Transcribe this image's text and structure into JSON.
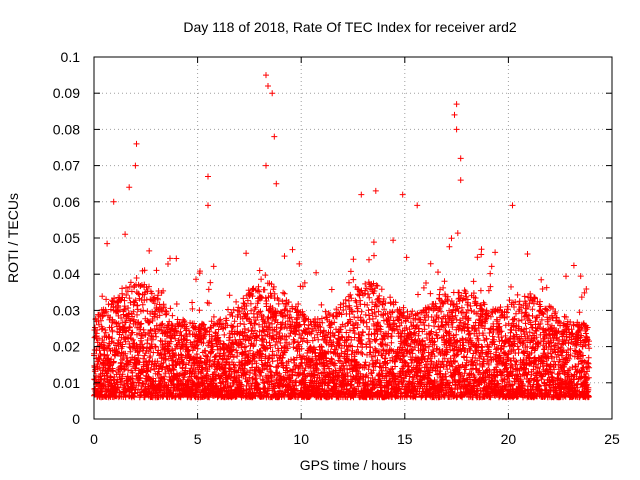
{
  "chart_data": {
    "type": "scatter",
    "title": "Day 118 of 2018, Rate Of TEC Index for receiver ard2",
    "xlabel": "GPS time / hours",
    "ylabel": "ROTI / TECUs",
    "xlim": [
      0,
      25
    ],
    "ylim": [
      0,
      0.1
    ],
    "xticks": [
      0,
      5,
      10,
      15,
      20,
      25
    ],
    "xtick_labels": [
      "0",
      "5",
      "10",
      "15",
      "20",
      "25"
    ],
    "yticks": [
      0,
      0.01,
      0.02,
      0.03,
      0.04,
      0.05,
      0.06,
      0.07,
      0.08,
      0.09,
      0.1
    ],
    "ytick_labels": [
      "0",
      "0.01",
      "0.02",
      "0.03",
      "0.04",
      "0.05",
      "0.06",
      "0.07",
      "0.08",
      "0.09",
      "0.1"
    ],
    "grid": true,
    "marker": "+",
    "color": "#ff0000",
    "data_x_range": [
      0,
      23.9
    ],
    "series": [
      {
        "name": "ROTI",
        "note": "dense band ~0.005-0.03 throughout the day; outliers listed",
        "peaks": [
          {
            "x": 0.95,
            "y": 0.06
          },
          {
            "x": 1.7,
            "y": 0.064
          },
          {
            "x": 2.05,
            "y": 0.076
          },
          {
            "x": 2.0,
            "y": 0.07
          },
          {
            "x": 5.5,
            "y": 0.067
          },
          {
            "x": 5.5,
            "y": 0.059
          },
          {
            "x": 8.3,
            "y": 0.095
          },
          {
            "x": 8.4,
            "y": 0.092
          },
          {
            "x": 8.6,
            "y": 0.09
          },
          {
            "x": 8.7,
            "y": 0.078
          },
          {
            "x": 8.8,
            "y": 0.065
          },
          {
            "x": 8.3,
            "y": 0.07
          },
          {
            "x": 12.9,
            "y": 0.062
          },
          {
            "x": 13.6,
            "y": 0.063
          },
          {
            "x": 14.9,
            "y": 0.062
          },
          {
            "x": 15.6,
            "y": 0.059
          },
          {
            "x": 17.5,
            "y": 0.087
          },
          {
            "x": 17.4,
            "y": 0.084
          },
          {
            "x": 17.5,
            "y": 0.08
          },
          {
            "x": 17.7,
            "y": 0.072
          },
          {
            "x": 17.7,
            "y": 0.066
          },
          {
            "x": 20.2,
            "y": 0.059
          }
        ]
      }
    ]
  }
}
